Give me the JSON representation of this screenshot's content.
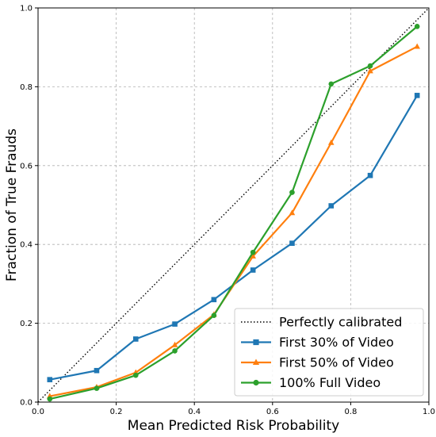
{
  "chart_data": {
    "type": "line",
    "title": "",
    "xlabel": "Mean Predicted Risk Probability",
    "ylabel": "Fraction of True Frauds",
    "xlim": [
      0,
      1
    ],
    "ylim": [
      0,
      1
    ],
    "x_ticks": [
      "0.0",
      "0.2",
      "0.4",
      "0.6",
      "0.8",
      "1.0"
    ],
    "y_ticks": [
      "0.0",
      "0.2",
      "0.4",
      "0.6",
      "0.8",
      "1.0"
    ],
    "grid": true,
    "legend_position": "bottom-right",
    "reference_line": {
      "name": "Perfectly calibrated",
      "x": [
        0,
        1
      ],
      "y": [
        0,
        1
      ],
      "color": "#000000",
      "style": "dotted"
    },
    "series": [
      {
        "name": "First 30% of Video",
        "color": "#1f77b4",
        "marker": "square",
        "x": [
          0.03,
          0.15,
          0.25,
          0.35,
          0.45,
          0.55,
          0.65,
          0.75,
          0.85,
          0.97
        ],
        "y": [
          0.057,
          0.08,
          0.16,
          0.198,
          0.26,
          0.335,
          0.403,
          0.498,
          0.575,
          0.778
        ]
      },
      {
        "name": "First 50% of Video",
        "color": "#ff7f0e",
        "marker": "triangle",
        "x": [
          0.03,
          0.15,
          0.25,
          0.35,
          0.45,
          0.55,
          0.65,
          0.75,
          0.85,
          0.97
        ],
        "y": [
          0.015,
          0.038,
          0.075,
          0.145,
          0.222,
          0.37,
          0.48,
          0.658,
          0.84,
          0.902
        ]
      },
      {
        "name": "100% Full Video",
        "color": "#2ca02c",
        "marker": "circle",
        "x": [
          0.03,
          0.15,
          0.25,
          0.35,
          0.45,
          0.55,
          0.65,
          0.75,
          0.85,
          0.97
        ],
        "y": [
          0.008,
          0.035,
          0.068,
          0.13,
          0.22,
          0.38,
          0.532,
          0.807,
          0.853,
          0.953
        ]
      }
    ]
  }
}
